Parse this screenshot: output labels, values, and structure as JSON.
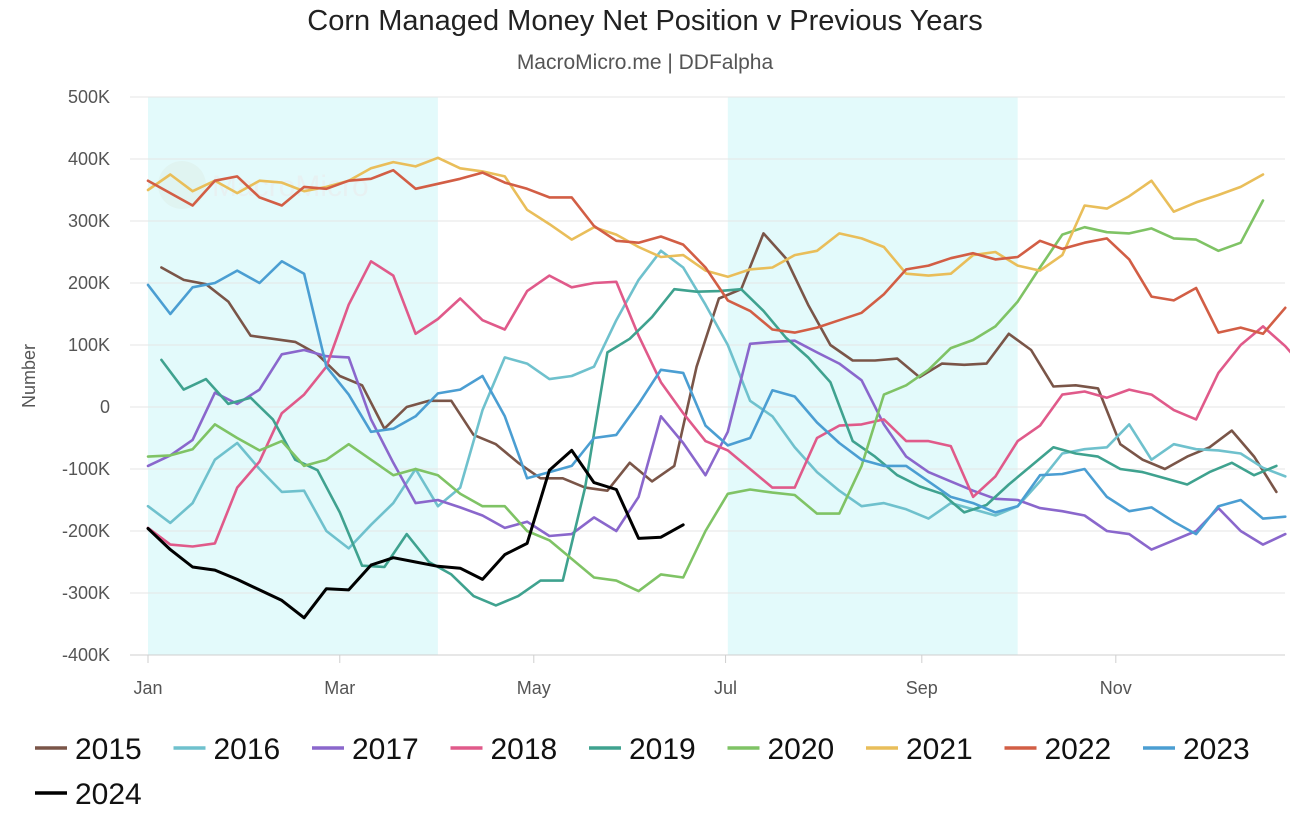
{
  "chart_data": {
    "type": "line",
    "title": "Corn Managed Money Net Position v Previous Years",
    "subtitle": "MacroMicro.me | DDFalpha",
    "watermark": "MacroMicro",
    "ylabel": "Number",
    "xlabel": "",
    "ylim": [
      -400000,
      500000
    ],
    "xlim": [
      0,
      52
    ],
    "y_ticks": [
      {
        "value": 500000,
        "label": "500K"
      },
      {
        "value": 400000,
        "label": "400K"
      },
      {
        "value": 300000,
        "label": "300K"
      },
      {
        "value": 200000,
        "label": "200K"
      },
      {
        "value": 100000,
        "label": "100K"
      },
      {
        "value": 0,
        "label": "0"
      },
      {
        "value": -100000,
        "label": "-100K"
      },
      {
        "value": -200000,
        "label": "-200K"
      },
      {
        "value": -300000,
        "label": "-300K"
      },
      {
        "value": -400000,
        "label": "-400K"
      }
    ],
    "x_ticks": [
      {
        "week": 0,
        "label": "Jan"
      },
      {
        "week": 8.6,
        "label": "Mar"
      },
      {
        "week": 17.3,
        "label": "May"
      },
      {
        "week": 25.9,
        "label": "Jul"
      },
      {
        "week": 34.7,
        "label": "Sep"
      },
      {
        "week": 43.4,
        "label": "Nov"
      }
    ],
    "shaded_ranges": [
      [
        0,
        13
      ],
      [
        26,
        39
      ]
    ],
    "shade_color": "#e3fafb",
    "grid": true,
    "legend_position": "bottom",
    "series": [
      {
        "name": "2015",
        "color": "#7a5548",
        "start_week": 0.6,
        "values": [
          225000,
          205000,
          198000,
          170000,
          115000,
          110000,
          105000,
          85000,
          50000,
          35000,
          -35000,
          0,
          10000,
          10000,
          -45000,
          -60000,
          -90000,
          -115000,
          -115000,
          -130000,
          -135000,
          -90000,
          -120000,
          -95000,
          65000,
          175000,
          190000,
          280000,
          240000,
          165000,
          100000,
          75000,
          75000,
          78000,
          48000,
          70000,
          68000,
          70000,
          118000,
          92000,
          33000,
          35000,
          30000,
          -60000,
          -85000,
          -100000,
          -80000,
          -65000,
          -38000,
          -80000,
          -137000
        ]
      },
      {
        "name": "2016",
        "color": "#6fc1cd",
        "start_week": 0,
        "values": [
          -160000,
          -187000,
          -155000,
          -85000,
          -58000,
          -100000,
          -137000,
          -135000,
          -200000,
          -228000,
          -190000,
          -155000,
          -100000,
          -160000,
          -130000,
          -5000,
          80000,
          70000,
          45000,
          50000,
          65000,
          140000,
          205000,
          252000,
          225000,
          165000,
          100000,
          10000,
          -15000,
          -65000,
          -105000,
          -135000,
          -160000,
          -155000,
          -165000,
          -180000,
          -155000,
          -165000,
          -175000,
          -160000,
          -120000,
          -75000,
          -68000,
          -65000,
          -28000,
          -85000,
          -60000,
          -68000,
          -70000,
          -75000,
          -98000,
          -112000
        ]
      },
      {
        "name": "2017",
        "color": "#8a67cc",
        "start_week": 0,
        "values": [
          -95000,
          -78000,
          -53000,
          23000,
          5000,
          28000,
          85000,
          92000,
          82000,
          80000,
          -20000,
          -90000,
          -155000,
          -150000,
          -162000,
          -175000,
          -195000,
          -185000,
          -208000,
          -205000,
          -178000,
          -200000,
          -145000,
          -15000,
          -58000,
          -110000,
          -40000,
          102000,
          105000,
          107000,
          88000,
          70000,
          43000,
          -28000,
          -80000,
          -105000,
          -120000,
          -135000,
          -148000,
          -150000,
          -163000,
          -168000,
          -175000,
          -200000,
          -205000,
          -230000,
          -215000,
          -200000,
          -163000,
          -200000,
          -222000,
          -205000
        ]
      },
      {
        "name": "2018",
        "color": "#e05a8a",
        "start_week": 0,
        "values": [
          -195000,
          -222000,
          -225000,
          -220000,
          -130000,
          -88000,
          -10000,
          20000,
          65000,
          165000,
          235000,
          212000,
          118000,
          142000,
          175000,
          140000,
          125000,
          187000,
          212000,
          193000,
          200000,
          202000,
          115000,
          40000,
          -10000,
          -55000,
          -70000,
          -100000,
          -130000,
          -130000,
          -50000,
          -30000,
          -28000,
          -20000,
          -55000,
          -55000,
          -63000,
          -145000,
          -112000,
          -55000,
          -30000,
          20000,
          25000,
          15000,
          28000,
          20000,
          -5000,
          -20000,
          55000,
          100000,
          130000,
          98000,
          57000
        ]
      },
      {
        "name": "2019",
        "color": "#3fa28f",
        "start_week": 0.6,
        "values": [
          76000,
          28000,
          45000,
          5000,
          15000,
          -20000,
          -85000,
          -102000,
          -170000,
          -256000,
          -258000,
          -205000,
          -250000,
          -270000,
          -305000,
          -320000,
          -305000,
          -280000,
          -280000,
          -130000,
          88000,
          110000,
          145000,
          190000,
          186000,
          187000,
          190000,
          155000,
          112000,
          80000,
          40000,
          -55000,
          -80000,
          -110000,
          -128000,
          -140000,
          -170000,
          -158000,
          -125000,
          -95000,
          -65000,
          -75000,
          -80000,
          -100000,
          -105000,
          -115000,
          -125000,
          -105000,
          -90000,
          -110000,
          -95000
        ]
      },
      {
        "name": "2020",
        "color": "#7fc365",
        "start_week": 0,
        "values": [
          -80000,
          -78000,
          -68000,
          -28000,
          -50000,
          -70000,
          -55000,
          -95000,
          -85000,
          -60000,
          -85000,
          -110000,
          -100000,
          -110000,
          -140000,
          -160000,
          -160000,
          -200000,
          -215000,
          -245000,
          -275000,
          -280000,
          -297000,
          -270000,
          -275000,
          -200000,
          -140000,
          -133000,
          -138000,
          -142000,
          -172000,
          -172000,
          -95000,
          20000,
          35000,
          60000,
          95000,
          108000,
          130000,
          170000,
          225000,
          278000,
          290000,
          282000,
          280000,
          288000,
          272000,
          270000,
          252000,
          265000,
          333000
        ]
      },
      {
        "name": "2021",
        "color": "#e9be5a",
        "start_week": 0,
        "values": [
          350000,
          375000,
          348000,
          365000,
          345000,
          365000,
          362000,
          348000,
          355000,
          365000,
          385000,
          395000,
          388000,
          402000,
          385000,
          380000,
          372000,
          318000,
          295000,
          270000,
          290000,
          278000,
          258000,
          242000,
          245000,
          220000,
          210000,
          222000,
          225000,
          245000,
          252000,
          280000,
          272000,
          258000,
          215000,
          212000,
          215000,
          245000,
          250000,
          228000,
          220000,
          245000,
          325000,
          320000,
          340000,
          365000,
          315000,
          330000,
          342000,
          355000,
          375000
        ]
      },
      {
        "name": "2022",
        "color": "#d25e45",
        "start_week": 0,
        "values": [
          365000,
          345000,
          325000,
          365000,
          372000,
          338000,
          325000,
          355000,
          352000,
          365000,
          368000,
          382000,
          352000,
          360000,
          368000,
          378000,
          362000,
          352000,
          338000,
          338000,
          292000,
          268000,
          265000,
          275000,
          262000,
          225000,
          172000,
          155000,
          125000,
          120000,
          128000,
          140000,
          152000,
          182000,
          222000,
          228000,
          240000,
          248000,
          238000,
          242000,
          268000,
          255000,
          265000,
          272000,
          238000,
          178000,
          172000,
          192000,
          120000,
          128000,
          118000,
          160000
        ]
      },
      {
        "name": "2023",
        "color": "#4b9ed2",
        "start_week": 0,
        "values": [
          197000,
          150000,
          193000,
          200000,
          220000,
          200000,
          235000,
          215000,
          65000,
          20000,
          -40000,
          -35000,
          -15000,
          22000,
          28000,
          50000,
          -15000,
          -115000,
          -105000,
          -95000,
          -50000,
          -45000,
          5000,
          60000,
          55000,
          -30000,
          -62000,
          -50000,
          27000,
          17000,
          -25000,
          -58000,
          -85000,
          -95000,
          -95000,
          -120000,
          -145000,
          -155000,
          -170000,
          -160000,
          -110000,
          -108000,
          -100000,
          -145000,
          -168000,
          -162000,
          -185000,
          -205000,
          -160000,
          -150000,
          -180000,
          -177000
        ]
      },
      {
        "name": "2024",
        "color": "#000000",
        "start_week": 0,
        "values": [
          -196000,
          -230000,
          -258000,
          -263000,
          -278000,
          -295000,
          -312000,
          -340000,
          -293000,
          -295000,
          -255000,
          -243000,
          -250000,
          -257000,
          -260000,
          -278000,
          -238000,
          -220000,
          -102000,
          -70000,
          -122000,
          -133000,
          -212000,
          -210000,
          -190000
        ]
      }
    ]
  }
}
